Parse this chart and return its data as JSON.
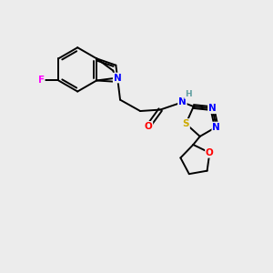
{
  "bg_color": "#ececec",
  "atom_colors": {
    "C": "#000000",
    "N": "#0000ff",
    "O": "#ff0000",
    "F": "#ff00ff",
    "S": "#ccaa00",
    "H": "#5f9ea0"
  },
  "lw": 1.4,
  "fs": 7.5
}
